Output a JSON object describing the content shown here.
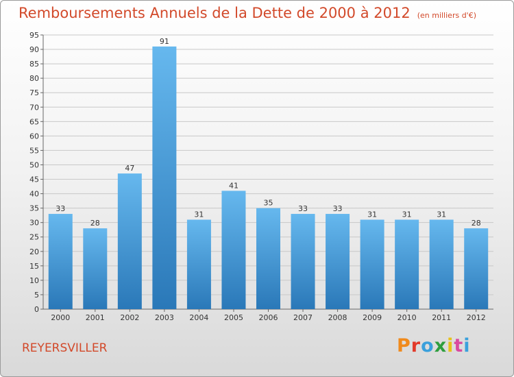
{
  "chart_data": {
    "type": "bar",
    "title": "Remboursements Annuels de la Dette de 2000 à 2012",
    "subtitle": "(en milliers d'€)",
    "categories": [
      "2000",
      "2001",
      "2002",
      "2003",
      "2004",
      "2005",
      "2006",
      "2007",
      "2008",
      "2009",
      "2010",
      "2011",
      "2012"
    ],
    "values": [
      33,
      28,
      47,
      91,
      31,
      41,
      35,
      33,
      33,
      31,
      31,
      31,
      28
    ],
    "ylim": [
      0,
      95
    ],
    "ytick_step": 5,
    "xlabel": "",
    "ylabel": "",
    "grid": true
  },
  "location": "REYERSVILLER",
  "brand": "Proxiti",
  "colors": {
    "title": "#d2492a",
    "bar_top": "#66b8ee",
    "bar_bottom": "#2a78b8",
    "grid": "#c8c8c8",
    "logo": [
      "#f08a1c",
      "#e23a2a",
      "#3aa0dc",
      "#2e9e3e",
      "#e8c21a",
      "#d94aa0",
      "#3aa0dc"
    ]
  }
}
